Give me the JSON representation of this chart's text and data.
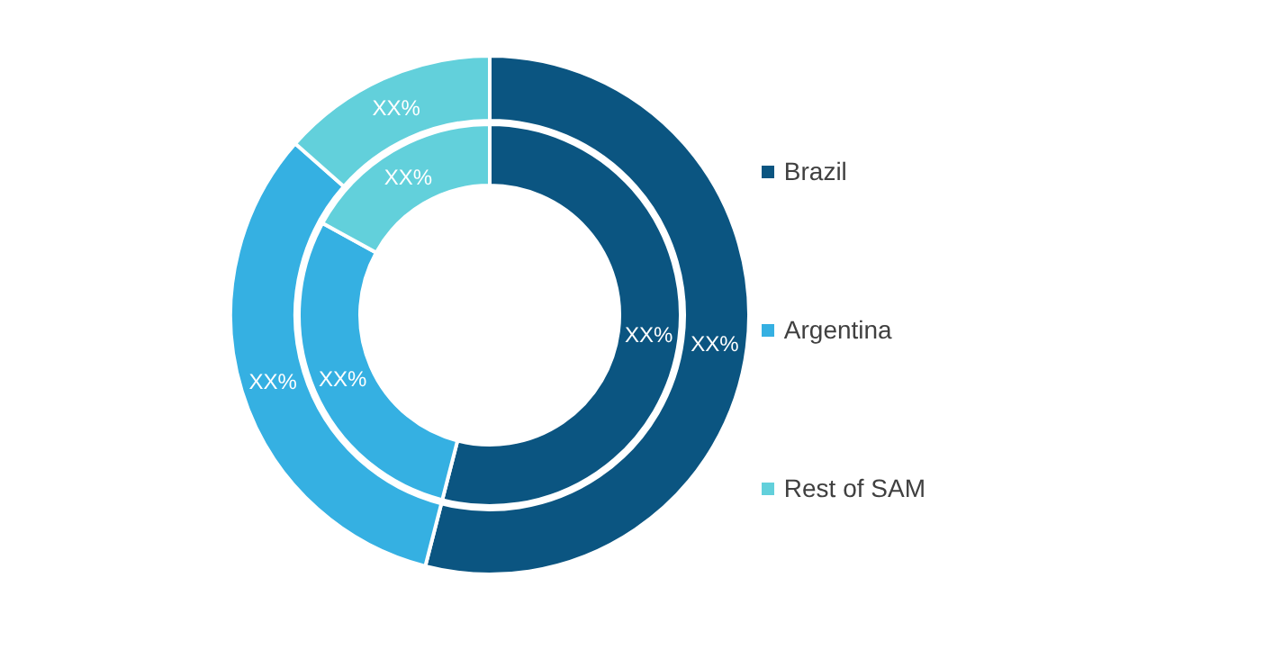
{
  "chart_data": {
    "type": "donut",
    "categories": [
      "Brazil",
      "Argentina",
      "Rest of SAM"
    ],
    "colors": [
      "#0b5581",
      "#35b0e2",
      "#62d0db"
    ],
    "legend": "right",
    "series": [
      {
        "values": [
          54,
          32.5,
          13.5
        ],
        "value_labels": [
          "XX%",
          "XX%",
          "XX%"
        ]
      },
      {
        "values": [
          54,
          29,
          17
        ],
        "value_labels": [
          "XX%",
          "XX%",
          "XX%"
        ]
      }
    ]
  }
}
